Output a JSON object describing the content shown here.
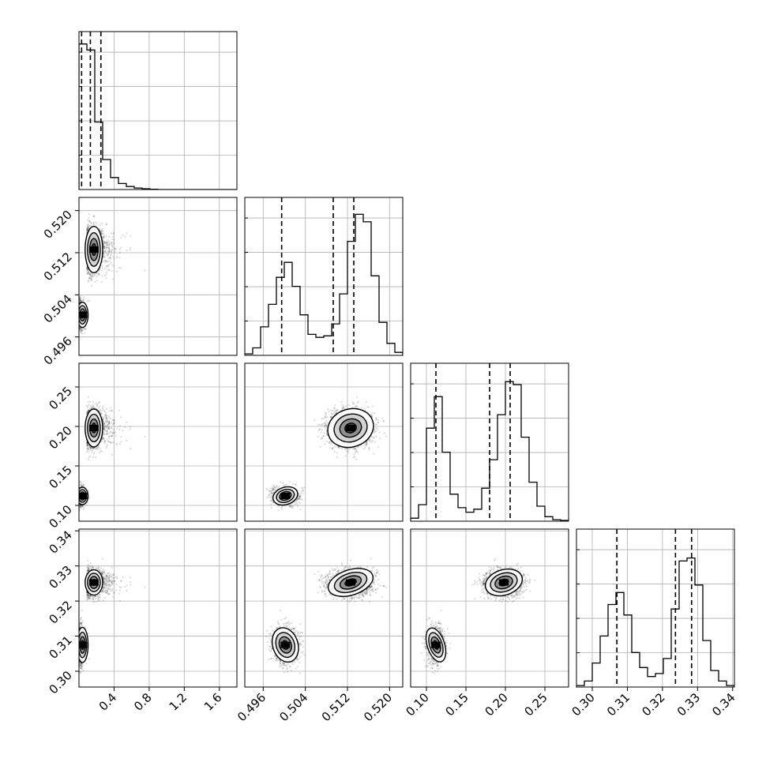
{
  "chart_data": {
    "type": "corner",
    "title": "",
    "grid": true,
    "params": [
      {
        "range": [
          0,
          1.8
        ],
        "ticks": [
          0.4,
          0.8,
          1.2,
          1.6
        ],
        "tick_labels": [
          "0.4",
          "0.8",
          "1.2",
          "1.6"
        ],
        "quantiles": [
          0.03,
          0.13,
          0.25
        ]
      },
      {
        "range": [
          0.4925,
          0.5225
        ],
        "ticks": [
          0.496,
          0.504,
          0.512,
          0.52
        ],
        "tick_labels": [
          "0.496",
          "0.504",
          "0.512",
          "0.520"
        ],
        "quantiles": [
          0.4995,
          0.5093,
          0.5132
        ]
      },
      {
        "range": [
          0.08,
          0.28
        ],
        "ticks": [
          0.1,
          0.15,
          0.2,
          0.25
        ],
        "tick_labels": [
          "0.10",
          "0.15",
          "0.20",
          "0.25"
        ],
        "quantiles": [
          0.112,
          0.18,
          0.206
        ]
      },
      {
        "range": [
          0.2955,
          0.3405
        ],
        "ticks": [
          0.3,
          0.31,
          0.32,
          0.33,
          0.34
        ],
        "tick_labels": [
          "0.30",
          "0.31",
          "0.32",
          "0.33",
          "0.34"
        ],
        "quantiles": [
          0.307,
          0.3237,
          0.3283
        ]
      }
    ],
    "histograms": [
      [
        0.97,
        0.93,
        0.45,
        0.2,
        0.08,
        0.04,
        0.02,
        0.01,
        0.005,
        0.002,
        0,
        0,
        0,
        0,
        0,
        0,
        0,
        0,
        0,
        0
      ],
      [
        0.01,
        0.05,
        0.19,
        0.34,
        0.52,
        0.62,
        0.46,
        0.27,
        0.14,
        0.12,
        0.13,
        0.21,
        0.41,
        0.76,
        0.94,
        0.89,
        0.53,
        0.22,
        0.08,
        0.02
      ],
      [
        0.02,
        0.11,
        0.62,
        0.83,
        0.46,
        0.18,
        0.09,
        0.06,
        0.08,
        0.22,
        0.41,
        0.71,
        0.93,
        0.91,
        0.56,
        0.26,
        0.1,
        0.03,
        0.01,
        0.005
      ],
      [
        0.01,
        0.04,
        0.16,
        0.34,
        0.55,
        0.63,
        0.48,
        0.23,
        0.13,
        0.07,
        0.09,
        0.19,
        0.52,
        0.84,
        0.86,
        0.68,
        0.31,
        0.11,
        0.04,
        0.01
      ]
    ],
    "clusters": [
      {
        "center": [
          0.04,
          0.5002,
          0.112,
          0.3075
        ],
        "sd": [
          0.03,
          0.0012,
          0.0055,
          0.0025
        ]
      },
      {
        "center": [
          0.17,
          0.5126,
          0.198,
          0.3253
        ],
        "sd": [
          0.06,
          0.0022,
          0.012,
          0.0018
        ]
      }
    ],
    "cluster_weights": [
      0.35,
      0.65
    ]
  }
}
